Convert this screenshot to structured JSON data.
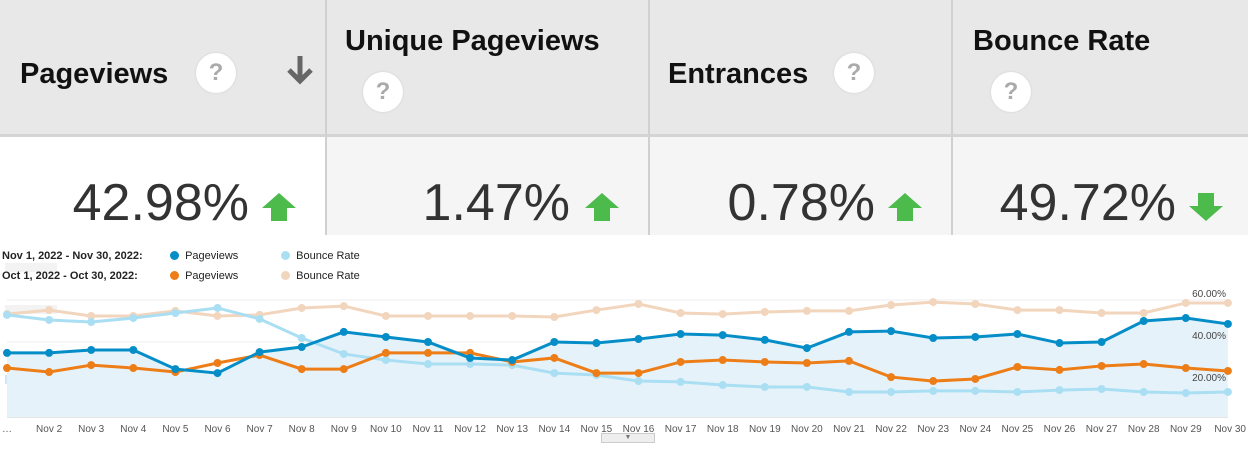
{
  "columns": [
    {
      "title": "Pageviews",
      "change": "42.98%",
      "direction": "up",
      "sorted": true
    },
    {
      "title": "Unique Pageviews",
      "change": "1.47%",
      "direction": "up"
    },
    {
      "title": "Entrances",
      "change": "0.78%",
      "direction": "up"
    },
    {
      "title": "Bounce Rate",
      "change": "49.72%",
      "direction": "down"
    }
  ],
  "help_glyph": "?",
  "colors": {
    "up": "#4cbb4c",
    "down": "#4cbb4c",
    "nov_pageviews": "#058dc7",
    "nov_bounce": "#aadff3",
    "oct_pageviews": "#ed7e17",
    "oct_bounce": "#f2d5bd"
  },
  "legend": {
    "row1": {
      "range": "Nov 1, 2022 - Nov 30, 2022:",
      "s1": "Pageviews",
      "s2": "Bounce Rate"
    },
    "row2": {
      "range": "Oct 1, 2022 - Oct 30, 2022:",
      "s1": "Pageviews",
      "s2": "Bounce Rate"
    }
  },
  "chart_data": {
    "type": "line",
    "x": [
      "…",
      "Nov 2",
      "Nov 3",
      "Nov 4",
      "Nov 5",
      "Nov 6",
      "Nov 7",
      "Nov 8",
      "Nov 9",
      "Nov 10",
      "Nov 11",
      "Nov 12",
      "Nov 13",
      "Nov 14",
      "Nov 15",
      "Nov 16",
      "Nov 17",
      "Nov 18",
      "Nov 19",
      "Nov 20",
      "Nov 21",
      "Nov 22",
      "Nov 23",
      "Nov 24",
      "Nov 25",
      "Nov 26",
      "Nov 27",
      "Nov 28",
      "Nov 29",
      "Nov 30"
    ],
    "right_axis_ticks": [
      "20.00%",
      "40.00%",
      "60.00%"
    ],
    "grid": true,
    "series": [
      {
        "name": "Pageviews",
        "period": "Nov 1, 2022 - Nov 30, 2022",
        "color": "#058dc7",
        "area": true,
        "values": [
          34.8,
          34.8,
          36.2,
          36.2,
          27.1,
          25.2,
          35.2,
          37.6,
          44.8,
          42.4,
          40,
          32.4,
          31.4,
          40,
          39.5,
          41.4,
          43.8,
          43.3,
          41,
          37.1,
          44.8,
          45.2,
          41.9,
          42.4,
          43.8,
          39.5,
          40,
          50,
          51.4,
          48.6
        ]
      },
      {
        "name": "Bounce Rate",
        "period": "Nov 1, 2022 - Nov 30, 2022",
        "color": "#aadff3",
        "values": [
          52.9,
          50.5,
          49.5,
          51.4,
          53.8,
          56.2,
          51,
          41.9,
          34.3,
          31.4,
          29.5,
          29.5,
          29,
          25.2,
          24.3,
          21.4,
          21,
          19.5,
          18.6,
          18.6,
          16.2,
          16.2,
          16.7,
          16.7,
          16.2,
          17.1,
          17.6,
          16.2,
          15.7,
          16.2
        ]
      },
      {
        "name": "Pageviews",
        "period": "Oct 1, 2022 - Oct 30, 2022",
        "color": "#ed7e17",
        "values": [
          27.6,
          25.7,
          29,
          27.6,
          25.7,
          30,
          33.8,
          27.1,
          27.1,
          34.8,
          34.8,
          34.8,
          30.5,
          32.4,
          25.2,
          25.2,
          30.5,
          31.4,
          30.5,
          30,
          31,
          23.3,
          21.4,
          22.4,
          28.1,
          26.7,
          28.6,
          29.5,
          27.6,
          26.2
        ]
      },
      {
        "name": "Bounce Rate",
        "period": "Oct 1, 2022 - Oct 30, 2022",
        "color": "#f2d5bd",
        "values": [
          53.3,
          55.2,
          52.4,
          52.4,
          54.8,
          52.4,
          52.9,
          56.2,
          57.1,
          52.4,
          52.4,
          52.4,
          52.4,
          51.9,
          55.2,
          58.1,
          53.8,
          53.3,
          54.3,
          54.8,
          54.8,
          57.6,
          59,
          58.1,
          55.2,
          55.2,
          53.8,
          53.8,
          58.6,
          58.6
        ]
      }
    ]
  }
}
